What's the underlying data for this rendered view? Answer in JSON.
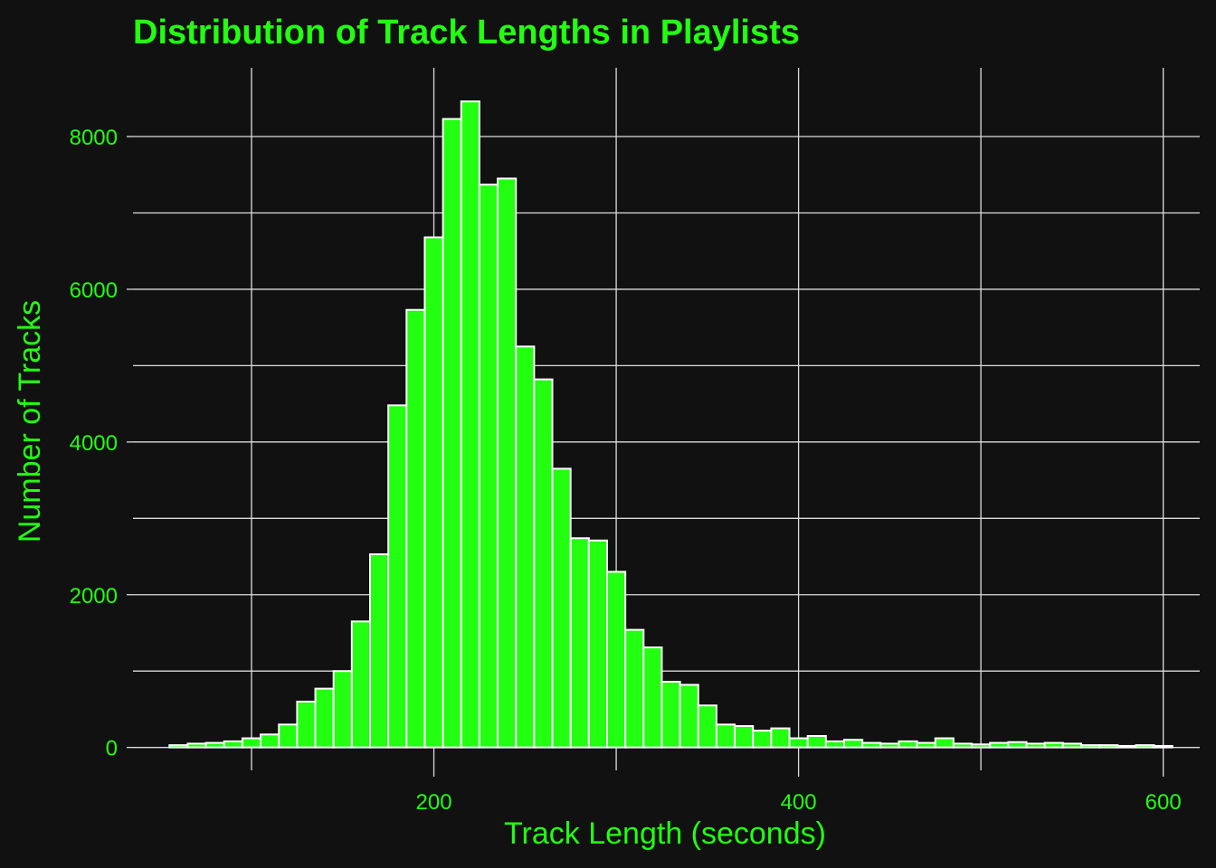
{
  "colors": {
    "background": "#111111",
    "text": "#22ff11",
    "bar_fill": "#22ff11",
    "bar_stroke": "#ffffff",
    "grid": "#dddddd"
  },
  "chart_data": {
    "type": "bar",
    "title": "Distribution of Track Lengths in Playlists",
    "xlabel": "Track Length (seconds)",
    "ylabel": "Number of Tracks",
    "xlim": [
      35,
      620
    ],
    "ylim": [
      -300,
      8900
    ],
    "x_ticks": [
      200,
      400,
      600
    ],
    "x_tick_labels": [
      "200",
      "400",
      "600"
    ],
    "y_ticks": [
      0,
      2000,
      4000,
      6000,
      8000
    ],
    "y_tick_labels": [
      "0",
      "2000",
      "4000",
      "6000",
      "8000"
    ],
    "grid": true,
    "bin_width": 10,
    "bin_start": 55,
    "values": [
      30,
      50,
      60,
      80,
      120,
      170,
      300,
      600,
      770,
      1000,
      1650,
      2530,
      4480,
      5730,
      6680,
      8230,
      8460,
      7370,
      7450,
      5250,
      4820,
      3650,
      2740,
      2710,
      2300,
      1540,
      1310,
      860,
      820,
      550,
      300,
      280,
      220,
      250,
      120,
      150,
      80,
      100,
      60,
      50,
      80,
      60,
      120,
      50,
      40,
      60,
      70,
      50,
      60,
      50,
      30,
      30,
      20,
      30,
      20
    ]
  }
}
